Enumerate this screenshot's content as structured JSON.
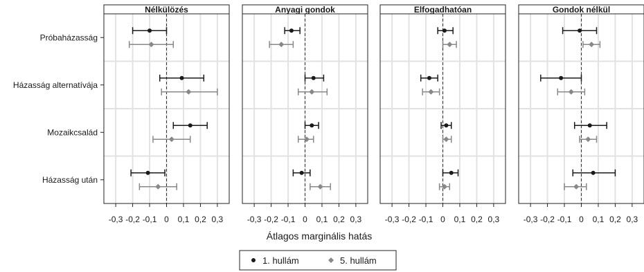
{
  "chart_data": {
    "type": "errorbar",
    "xlabel": "Átlagos marginális hatás",
    "xlim": [
      -0.37,
      0.37
    ],
    "xticks": [
      -0.3,
      -0.2,
      -0.1,
      0,
      0.1,
      0.2,
      0.3
    ],
    "xtick_labels": [
      "-0,3",
      "-0,2",
      "-0,1",
      "0",
      "0,1",
      "0,2",
      "0,3"
    ],
    "reference_line": 0,
    "grid": true,
    "categories": [
      "Próbaházasság",
      "Házasság alternatívája",
      "Mozaikcsalád",
      "Házasság után"
    ],
    "legend": {
      "placement": "bottom",
      "entries": [
        {
          "label": "1. hullám",
          "color": "#1a1a1a",
          "marker": "circle"
        },
        {
          "label": "5. hullám",
          "color": "#888888",
          "marker": "diamond"
        }
      ]
    },
    "panels": [
      {
        "title": "Nélkülözés",
        "series": [
          {
            "name": "1. hullám",
            "estimate": [
              -0.1,
              0.09,
              0.14,
              -0.11
            ],
            "lower": [
              -0.2,
              -0.04,
              0.04,
              -0.21
            ],
            "upper": [
              0.0,
              0.22,
              0.24,
              -0.01
            ]
          },
          {
            "name": "5. hullám",
            "estimate": [
              -0.09,
              0.13,
              0.03,
              -0.05
            ],
            "lower": [
              -0.22,
              -0.03,
              -0.08,
              -0.16
            ],
            "upper": [
              0.04,
              0.3,
              0.14,
              0.06
            ]
          }
        ]
      },
      {
        "title": "Anyagi gondok",
        "series": [
          {
            "name": "1. hullám",
            "estimate": [
              -0.08,
              0.05,
              0.04,
              -0.02
            ],
            "lower": [
              -0.12,
              0.0,
              0.0,
              -0.07
            ],
            "upper": [
              -0.03,
              0.11,
              0.08,
              0.03
            ]
          },
          {
            "name": "5. hullám",
            "estimate": [
              -0.14,
              0.04,
              0.01,
              0.09
            ],
            "lower": [
              -0.21,
              -0.04,
              -0.04,
              0.03
            ],
            "upper": [
              -0.07,
              0.13,
              0.05,
              0.15
            ]
          }
        ]
      },
      {
        "title": "Elfogadhatóan",
        "series": [
          {
            "name": "1. hullám",
            "estimate": [
              0.01,
              -0.08,
              0.02,
              0.05
            ],
            "lower": [
              -0.03,
              -0.13,
              -0.01,
              0.0
            ],
            "upper": [
              0.06,
              -0.03,
              0.05,
              0.09
            ]
          },
          {
            "name": "5. hullám",
            "estimate": [
              0.04,
              -0.07,
              0.02,
              0.01
            ],
            "lower": [
              0.0,
              -0.12,
              0.0,
              -0.02
            ],
            "upper": [
              0.08,
              -0.02,
              0.05,
              0.04
            ]
          }
        ]
      },
      {
        "title": "Gondok nélkül",
        "series": [
          {
            "name": "1. hullám",
            "estimate": [
              -0.01,
              -0.12,
              0.05,
              0.07
            ],
            "lower": [
              -0.11,
              -0.24,
              -0.04,
              -0.05
            ],
            "upper": [
              0.09,
              0.0,
              0.15,
              0.2
            ]
          },
          {
            "name": "5. hullám",
            "estimate": [
              0.06,
              -0.06,
              0.04,
              -0.03
            ],
            "lower": [
              0.01,
              -0.14,
              -0.01,
              -0.1
            ],
            "upper": [
              0.11,
              0.02,
              0.09,
              0.03
            ]
          }
        ]
      }
    ]
  }
}
